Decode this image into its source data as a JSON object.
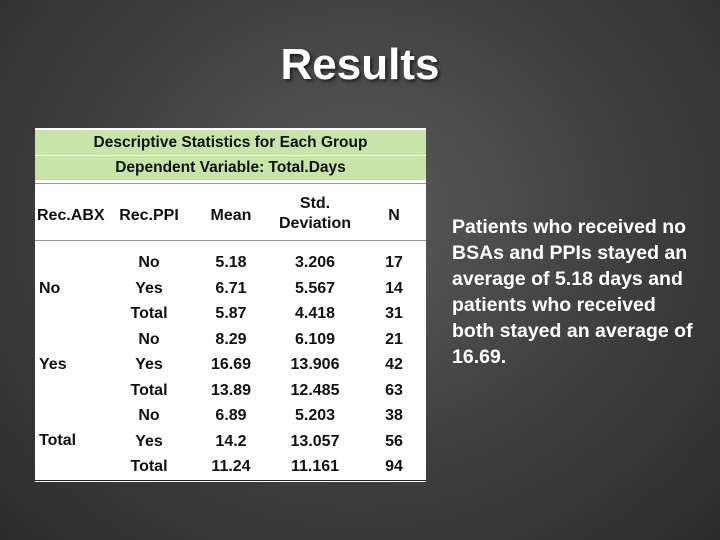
{
  "slide": {
    "title": "Results",
    "side_text": "Patients who received no BSAs and PPIs stayed an average of 5.18 days and patients who received both stayed an average of 16.69."
  },
  "table": {
    "title": "Descriptive Statistics for Each Group",
    "subtitle": "Dependent Variable: Total.Days",
    "columns": {
      "abx": "Rec.ABX",
      "ppi": "Rec.PPI",
      "mean": "Mean",
      "sd": "Std. Deviation",
      "n": "N"
    },
    "abx_groups": [
      "No",
      "Yes",
      "Total"
    ],
    "rows": [
      {
        "ppi": "No",
        "mean": "5.18",
        "sd": "3.206",
        "n": "17"
      },
      {
        "ppi": "Yes",
        "mean": "6.71",
        "sd": "5.567",
        "n": "14"
      },
      {
        "ppi": "Total",
        "mean": "5.87",
        "sd": "4.418",
        "n": "31"
      },
      {
        "ppi": "No",
        "mean": "8.29",
        "sd": "6.109",
        "n": "21"
      },
      {
        "ppi": "Yes",
        "mean": "16.69",
        "sd": "13.906",
        "n": "42"
      },
      {
        "ppi": "Total",
        "mean": "13.89",
        "sd": "12.485",
        "n": "63"
      },
      {
        "ppi": "No",
        "mean": "6.89",
        "sd": "5.203",
        "n": "38"
      },
      {
        "ppi": "Yes",
        "mean": "14.2",
        "sd": "13.057",
        "n": "56"
      },
      {
        "ppi": "Total",
        "mean": "11.24",
        "sd": "11.161",
        "n": "94"
      }
    ]
  }
}
